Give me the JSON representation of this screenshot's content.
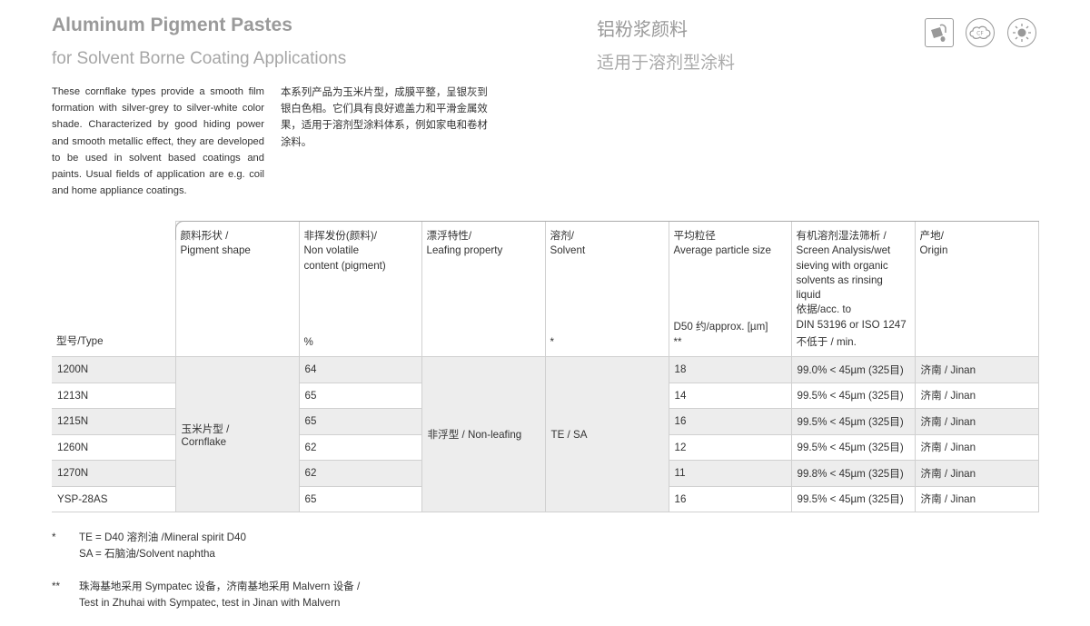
{
  "header": {
    "title": "Aluminum Pigment Pastes",
    "subtitle": "for Solvent Borne Coating Applications",
    "cn_title": "铝粉浆颜料",
    "cn_subtitle": "适用于溶剂型涂料",
    "icons": [
      "paint-bucket-icon",
      "cf-cloud-icon",
      "sun-icon"
    ],
    "icon_cf_label": "CF"
  },
  "description": {
    "en": "These cornflake types provide a smooth film formation with silver-grey to silver-white color shade.  Characterized by good hiding power and smooth metallic effect, they are developed to be used in solvent based coatings and paints. Usual fields of application are e.g. coil and home appliance coatings.",
    "cn": "本系列产品为玉米片型，成膜平整，呈银灰到银白色相。它们具有良好遮盖力和平滑金属效果，适用于溶剂型涂料体系，例如家电和卷材涂料。"
  },
  "table": {
    "columns": [
      {
        "top": "",
        "bottom": "型号/Type"
      },
      {
        "top": "颜料形状 /\nPigment shape",
        "bottom": ""
      },
      {
        "top": "非挥发份(颜料)/\nNon volatile\ncontent (pigment)",
        "bottom": "%"
      },
      {
        "top": "漂浮特性/\nLeafing property",
        "bottom": ""
      },
      {
        "top": "溶剂/\nSolvent",
        "bottom": "*"
      },
      {
        "top": "平均粒径\nAverage particle size",
        "bottom": "D50 约/approx. [µm]\n**"
      },
      {
        "top": "有机溶剂湿法筛析 /\nScreen Analysis/wet\nsieving with organic\nsolvents as rinsing liquid\n依据/acc. to\nDIN 53196 or ISO 1247",
        "bottom": "不低于 / min."
      },
      {
        "top": "产地/\nOrigin",
        "bottom": ""
      }
    ],
    "pigment_shape": "玉米片型 /\nCornflake",
    "leafing": "非浮型 / Non-leafing",
    "solvent": "TE / SA",
    "rows": [
      {
        "type": "1200N",
        "nonvolatile": "64",
        "d50": "18",
        "screen": "99.0% < 45µm (325目)",
        "origin": "济南 / Jinan"
      },
      {
        "type": "1213N",
        "nonvolatile": "65",
        "d50": "14",
        "screen": "99.5% < 45µm (325目)",
        "origin": "济南 / Jinan"
      },
      {
        "type": "1215N",
        "nonvolatile": "65",
        "d50": "16",
        "screen": "99.5% < 45µm (325目)",
        "origin": "济南 / Jinan"
      },
      {
        "type": "1260N",
        "nonvolatile": "62",
        "d50": "12",
        "screen": "99.5% < 45µm (325目)",
        "origin": "济南 / Jinan"
      },
      {
        "type": "1270N",
        "nonvolatile": "62",
        "d50": "11",
        "screen": "99.8% < 45µm (325目)",
        "origin": "济南 / Jinan"
      },
      {
        "type": "YSP-28AS",
        "nonvolatile": "65",
        "d50": "16",
        "screen": "99.5% < 45µm (325目)",
        "origin": "济南 / Jinan"
      }
    ]
  },
  "notes": [
    {
      "marker": "*",
      "lines": [
        "TE = D40 溶剂油 /Mineral spirit D40",
        "SA = 石脑油/Solvent naphtha"
      ]
    },
    {
      "marker": "**",
      "lines": [
        "珠海基地采用 Sympatec 设备，济南基地采用 Malvern 设备 /",
        "Test in Zhuhai with Sympatec, test in Jinan with Malvern"
      ]
    }
  ]
}
